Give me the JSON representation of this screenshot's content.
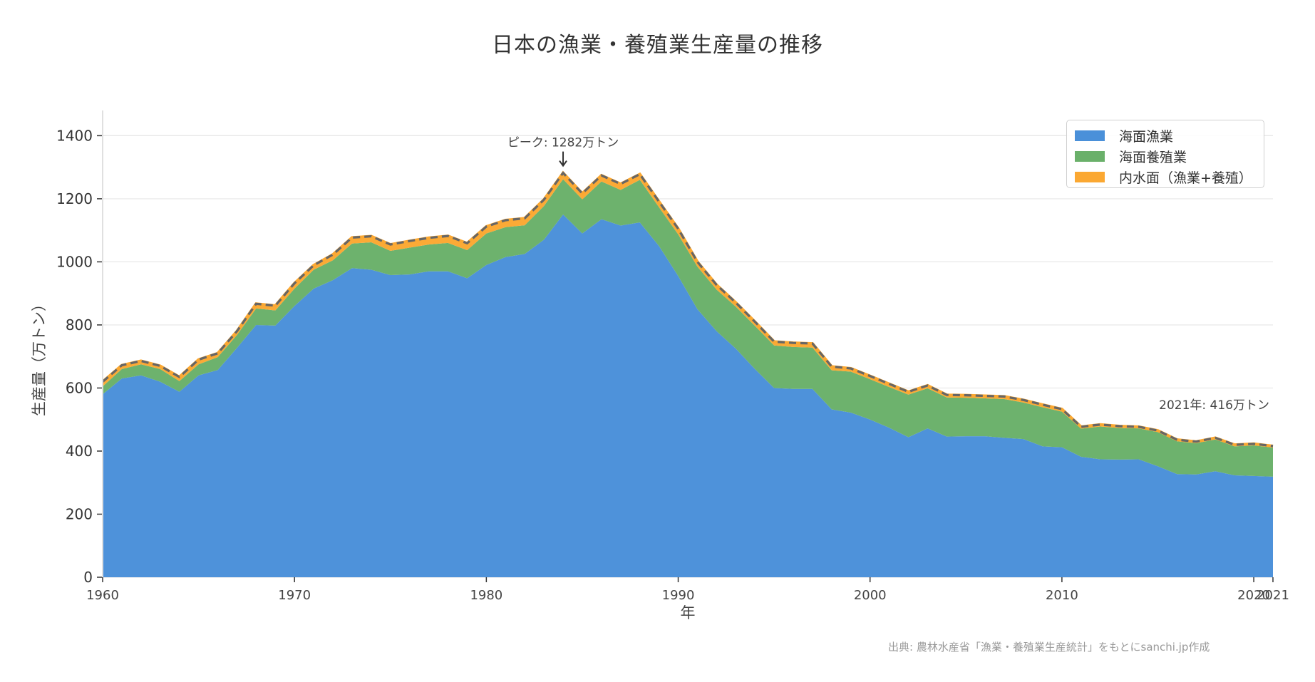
{
  "title": "日本の漁業・養殖業生産量の推移",
  "source_note": "出典: 農林水産省「漁業・養殖業生産統計」をもとにsanchi.jp作成",
  "legend": {
    "items": [
      {
        "label": "海面漁業",
        "color": "#4A90D9"
      },
      {
        "label": "海面養殖業",
        "color": "#6AB06A"
      },
      {
        "label": "内水面（漁業+養殖）",
        "color": "#FBA832"
      }
    ]
  },
  "annotations": {
    "peak": "ピーク: 1282万トン",
    "latest": "2021年: 416万トン"
  },
  "chart_data": {
    "type": "area",
    "stacked": true,
    "title": "日本の漁業・養殖業生産量の推移",
    "xlabel": "年",
    "ylabel": "生産量（万トン）",
    "xlim": [
      1960,
      2021
    ],
    "ylim": [
      0,
      1470
    ],
    "grid": "horizontal",
    "legend_position": "upper right",
    "x_ticks": [
      "1960",
      "1970",
      "1980",
      "1990",
      "2000",
      "2010",
      "2020",
      "2021"
    ],
    "y_ticks": [
      "0",
      "200",
      "400",
      "600",
      "800",
      "1000",
      "1200",
      "1400"
    ],
    "x": [
      1960,
      1961,
      1962,
      1963,
      1964,
      1965,
      1966,
      1967,
      1968,
      1969,
      1970,
      1971,
      1972,
      1973,
      1974,
      1975,
      1976,
      1977,
      1978,
      1979,
      1980,
      1981,
      1982,
      1983,
      1984,
      1985,
      1986,
      1987,
      1988,
      1989,
      1990,
      1991,
      1992,
      1993,
      1994,
      1995,
      1996,
      1997,
      1998,
      1999,
      2000,
      2001,
      2002,
      2003,
      2004,
      2005,
      2006,
      2007,
      2008,
      2009,
      2010,
      2011,
      2012,
      2013,
      2014,
      2015,
      2016,
      2017,
      2018,
      2019,
      2020,
      2021
    ],
    "series": [
      {
        "name": "海面漁業",
        "color": "#4A90D9",
        "values": [
          580,
          630,
          640,
          620,
          588,
          640,
          657,
          727,
          800,
          798,
          860,
          915,
          942,
          980,
          975,
          958,
          960,
          970,
          970,
          948,
          990,
          1015,
          1025,
          1070,
          1150,
          1090,
          1135,
          1115,
          1125,
          1050,
          955,
          850,
          780,
          725,
          660,
          600,
          597,
          597,
          532,
          522,
          500,
          474,
          444,
          472,
          446,
          447,
          447,
          442,
          438,
          415,
          412,
          382,
          374,
          373,
          374,
          352,
          327,
          326,
          336,
          323,
          321,
          319
        ]
      },
      {
        "name": "海面養殖業",
        "color": "#6AB06A",
        "values": [
          25,
          30,
          35,
          40,
          34,
          35,
          41,
          41,
          52,
          48,
          55,
          60,
          63,
          78,
          87,
          77,
          85,
          85,
          90,
          89,
          100,
          95,
          91,
          107,
          112,
          108,
          120,
          113,
          135,
          123,
          132,
          135,
          132,
          133,
          137,
          135,
          133,
          131,
          124,
          130,
          128,
          129,
          135,
          127,
          124,
          122,
          120,
          123,
          116,
          124,
          113,
          89,
          104,
          100,
          98,
          108,
          104,
          99,
          101,
          92,
          97,
          92
        ]
      },
      {
        "name": "内水面（漁業+養殖）",
        "color": "#FBA832",
        "values": [
          15,
          12,
          11,
          10,
          13,
          15,
          12,
          12,
          15,
          15,
          17,
          14,
          18,
          19,
          19,
          20,
          21,
          21,
          22,
          22,
          22,
          22,
          22,
          20,
          20,
          19,
          19,
          19,
          18,
          18,
          18,
          15,
          15,
          13,
          13,
          12,
          13,
          13,
          12,
          10,
          10,
          10,
          9,
          9,
          8,
          8,
          8,
          8,
          8,
          8,
          8,
          6,
          6,
          6,
          5,
          5,
          5,
          5,
          5,
          5,
          5,
          5
        ]
      }
    ],
    "totals": [
      620,
      672,
      686,
      670,
      635,
      690,
      710,
      780,
      867,
      861,
      932,
      989,
      1023,
      1077,
      1081,
      1055,
      1066,
      1076,
      1082,
      1059,
      1112,
      1132,
      1138,
      1197,
      1282,
      1217,
      1274,
      1247,
      1278,
      1191,
      1105,
      1000,
      927,
      871,
      810,
      747,
      743,
      741,
      668,
      662,
      638,
      613,
      588,
      608,
      578,
      577,
      575,
      573,
      562,
      547,
      533,
      477,
      484,
      479,
      477,
      465,
      436,
      430,
      442,
      420,
      423,
      416
    ],
    "annotations": [
      {
        "text": "ピーク: 1282万トン",
        "x": 1984,
        "y": 1282,
        "arrow": true
      },
      {
        "text": "2021年: 416万トン",
        "x": 2021,
        "y": 416
      }
    ]
  }
}
